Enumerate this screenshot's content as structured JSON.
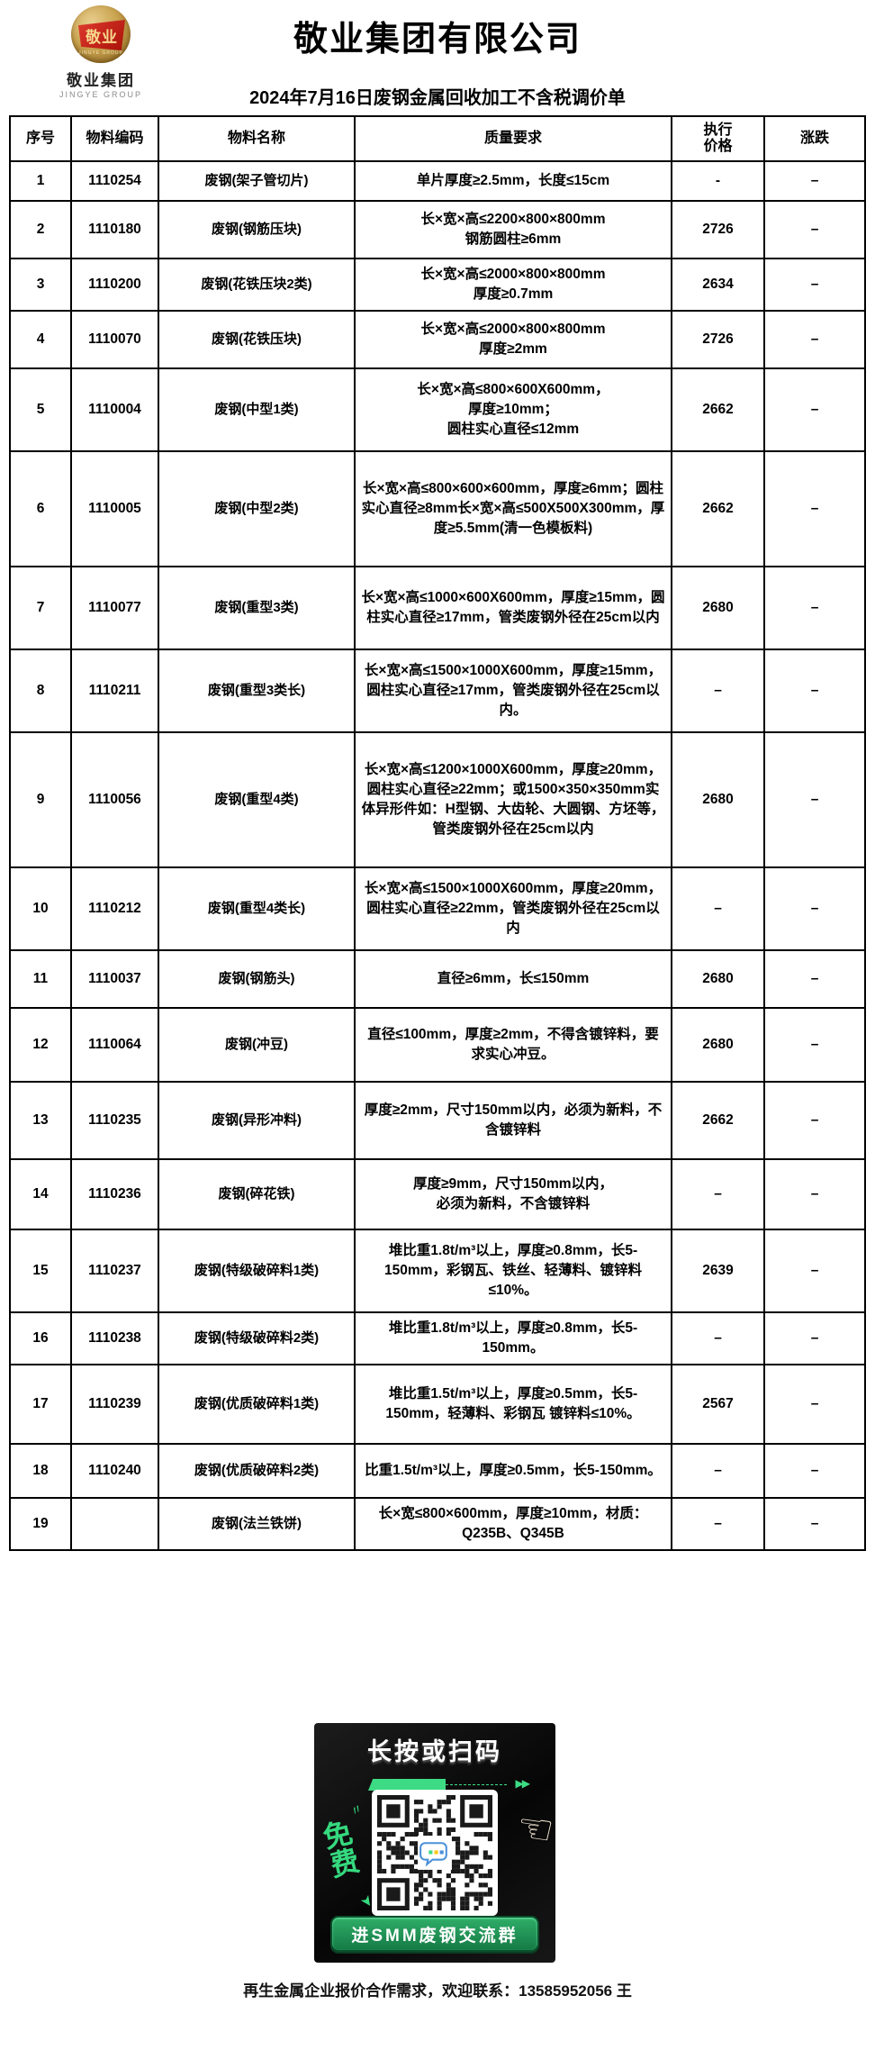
{
  "header": {
    "title": "敬业集团有限公司",
    "subtitle": "2024年7月16日废钢金属回收加工不含税调价单",
    "logo": {
      "badge_text": "敬业",
      "badge_arc": "JINGYE GROUP",
      "name_cn": "敬业集团",
      "name_en": "JINGYE GROUP"
    }
  },
  "table": {
    "columns": [
      "序号",
      "物料编码",
      "物料名称",
      "质量要求",
      "执行\n价格",
      "涨跌"
    ],
    "rows": [
      {
        "no": "1",
        "code": "1110254",
        "name": "废钢(架子管切片)",
        "quality": "单片厚度≥2.5mm，长度≤15cm",
        "price": "-",
        "change": "–"
      },
      {
        "no": "2",
        "code": "1110180",
        "name": "废钢(钢筋压块)",
        "quality": "长×宽×高≤2200×800×800mm\n钢筋圆柱≥6mm",
        "price": "2726",
        "change": "–"
      },
      {
        "no": "3",
        "code": "1110200",
        "name": "废钢(花铁压块2类)",
        "quality": "长×宽×高≤2000×800×800mm\n厚度≥0.7mm",
        "price": "2634",
        "change": "–"
      },
      {
        "no": "4",
        "code": "1110070",
        "name": "废钢(花铁压块)",
        "quality": "长×宽×高≤2000×800×800mm\n厚度≥2mm",
        "price": "2726",
        "change": "–"
      },
      {
        "no": "5",
        "code": "1110004",
        "name": "废钢(中型1类)",
        "quality": "长×宽×高≤800×600X600mm，\n厚度≥10mm；\n圆柱实心直径≤12mm",
        "price": "2662",
        "change": "–"
      },
      {
        "no": "6",
        "code": "1110005",
        "name": "废钢(中型2类)",
        "quality": "长×宽×高≤800×600×600mm，厚度≥6mm；圆柱实心直径≥8mm长×宽×高≤500X500X300mm，厚度≥5.5mm(清一色模板料)",
        "price": "2662",
        "change": "–"
      },
      {
        "no": "7",
        "code": "1110077",
        "name": "废钢(重型3类)",
        "quality": "长×宽×高≤1000×600X600mm，厚度≥15mm，圆柱实心直径≥17mm，管类废钢外径在25cm以内",
        "price": "2680",
        "change": "–"
      },
      {
        "no": "8",
        "code": "1110211",
        "name": "废钢(重型3类长)",
        "quality": "长×宽×高≤1500×1000X600mm，厚度≥15mm，圆柱实心直径≥17mm，管类废钢外径在25cm以内。",
        "price": "–",
        "change": "–"
      },
      {
        "no": "9",
        "code": "1110056",
        "name": "废钢(重型4类)",
        "quality": "长×宽×高≤1200×1000X600mm，厚度≥20mm，圆柱实心直径≥22mm；或1500×350×350mm实体异形件如：H型钢、大齿轮、大圆钢、方坯等，管类废钢外径在25cm以内",
        "price": "2680",
        "change": "–"
      },
      {
        "no": "10",
        "code": "1110212",
        "name": "废钢(重型4类长)",
        "quality": "长×宽×高≤1500×1000X600mm，厚度≥20mm，圆柱实心直径≥22mm，管类废钢外径在25cm以内",
        "price": "–",
        "change": "–"
      },
      {
        "no": "11",
        "code": "1110037",
        "name": "废钢(钢筋头)",
        "quality": "直径≥6mm，长≤150mm",
        "price": "2680",
        "change": "–"
      },
      {
        "no": "12",
        "code": "1110064",
        "name": "废钢(冲豆)",
        "quality": "直径≤100mm，厚度≥2mm，不得含镀锌料，要求实心冲豆。",
        "price": "2680",
        "change": "–"
      },
      {
        "no": "13",
        "code": "1110235",
        "name": "废钢(异形冲料)",
        "quality": "厚度≥2mm，尺寸150mm以内，必须为新料，不含镀锌料",
        "price": "2662",
        "change": "–"
      },
      {
        "no": "14",
        "code": "1110236",
        "name": "废钢(碎花铁)",
        "quality": "厚度≥9mm，尺寸150mm以内，\n必须为新料，不含镀锌料",
        "price": "–",
        "change": "–"
      },
      {
        "no": "15",
        "code": "1110237",
        "name": "废钢(特级破碎料1类)",
        "quality": "堆比重1.8t/m³以上，厚度≥0.8mm，长5-150mm，彩钢瓦、铁丝、轻薄料、镀锌料≤10%。",
        "price": "2639",
        "change": "–"
      },
      {
        "no": "16",
        "code": "1110238",
        "name": "废钢(特级破碎料2类)",
        "quality": "堆比重1.8t/m³以上，厚度≥0.8mm，长5-150mm。",
        "price": "–",
        "change": "–"
      },
      {
        "no": "17",
        "code": "1110239",
        "name": "废钢(优质破碎料1类)",
        "quality": "堆比重1.5t/m³以上，厚度≥0.5mm，长5-150mm，轻薄料、彩钢瓦 镀锌料≤10%。",
        "price": "2567",
        "change": "–"
      },
      {
        "no": "18",
        "code": "1110240",
        "name": "废钢(优质破碎料2类)",
        "quality": "比重1.5t/m³以上，厚度≥0.5mm，长5-150mm。",
        "price": "–",
        "change": "–"
      },
      {
        "no": "19",
        "code": "",
        "name": "废钢(法兰铁饼)",
        "quality": "长×宽≤800×600mm，厚度≥10mm，材质：Q235B、Q345B",
        "price": "–",
        "change": "–"
      }
    ]
  },
  "banner": {
    "headline": "长按或扫码",
    "free_label": "免费",
    "button_label": "进SMM废钢交流群",
    "arrows": "▶▶",
    "accent_green": "#3ddc84",
    "button_green": "#1f9d55"
  },
  "footer": {
    "contact": "再生金属企业报价合作需求，欢迎联系：13585952056 王"
  }
}
